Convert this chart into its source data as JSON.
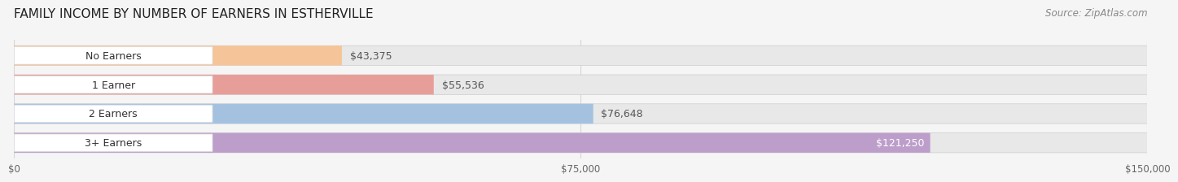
{
  "title": "FAMILY INCOME BY NUMBER OF EARNERS IN ESTHERVILLE",
  "source": "Source: ZipAtlas.com",
  "categories": [
    "No Earners",
    "1 Earner",
    "2 Earners",
    "3+ Earners"
  ],
  "values": [
    43375,
    55536,
    76648,
    121250
  ],
  "labels": [
    "$43,375",
    "$55,536",
    "$76,648",
    "$121,250"
  ],
  "bar_colors": [
    "#f5c498",
    "#e89e98",
    "#a4c2e0",
    "#bd9ecb"
  ],
  "bar_bg_color": "#e8e8e8",
  "label_bg_color": "#ffffff",
  "xlim": [
    0,
    150000
  ],
  "xticklabels": [
    "$0",
    "$75,000",
    "$150,000"
  ],
  "xtick_values": [
    0,
    75000,
    150000
  ],
  "title_fontsize": 11,
  "source_fontsize": 8.5,
  "label_fontsize": 9,
  "cat_fontsize": 9,
  "background_color": "#f5f5f5",
  "bar_height": 0.68,
  "title_color": "#222222",
  "source_color": "#888888",
  "cat_text_color": "#333333",
  "value_text_color_inside": "#ffffff",
  "value_text_color_outside": "#555555",
  "grid_color": "#d5d5d5",
  "bar_outline_color": "#cccccc"
}
